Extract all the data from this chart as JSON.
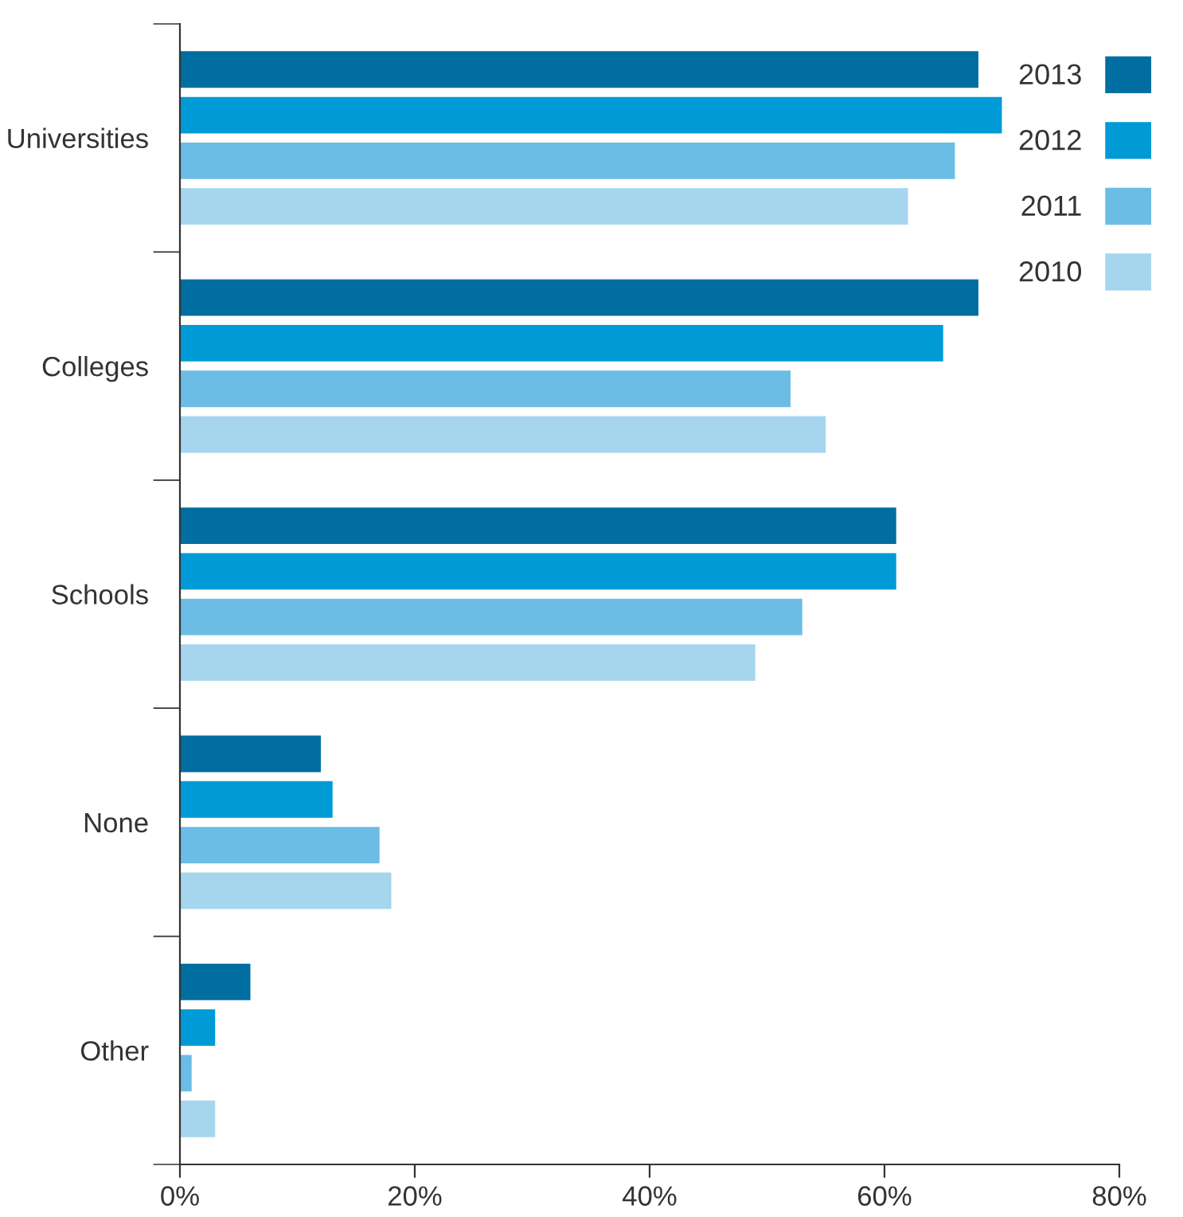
{
  "chart_data": {
    "type": "bar",
    "orientation": "horizontal",
    "categories": [
      "Universities",
      "Colleges",
      "Schools",
      "None",
      "Other"
    ],
    "series": [
      {
        "name": "2013",
        "color": "#006ea0",
        "values": [
          68,
          68,
          61,
          12,
          6
        ]
      },
      {
        "name": "2012",
        "color": "#009ad6",
        "values": [
          70,
          65,
          61,
          13,
          3
        ]
      },
      {
        "name": "2011",
        "color": "#6bbde5",
        "values": [
          66,
          52,
          53,
          17,
          1
        ]
      },
      {
        "name": "2010",
        "color": "#a6d5ee",
        "values": [
          62,
          55,
          49,
          18,
          3
        ]
      }
    ],
    "xlim": [
      0,
      80
    ],
    "xticks": [
      {
        "value": 0,
        "label": "0%"
      },
      {
        "value": 20,
        "label": "20%"
      },
      {
        "value": 40,
        "label": "40%"
      },
      {
        "value": 60,
        "label": "60%"
      },
      {
        "value": 80,
        "label": "80%"
      }
    ],
    "grid": false,
    "legend": "top right"
  }
}
